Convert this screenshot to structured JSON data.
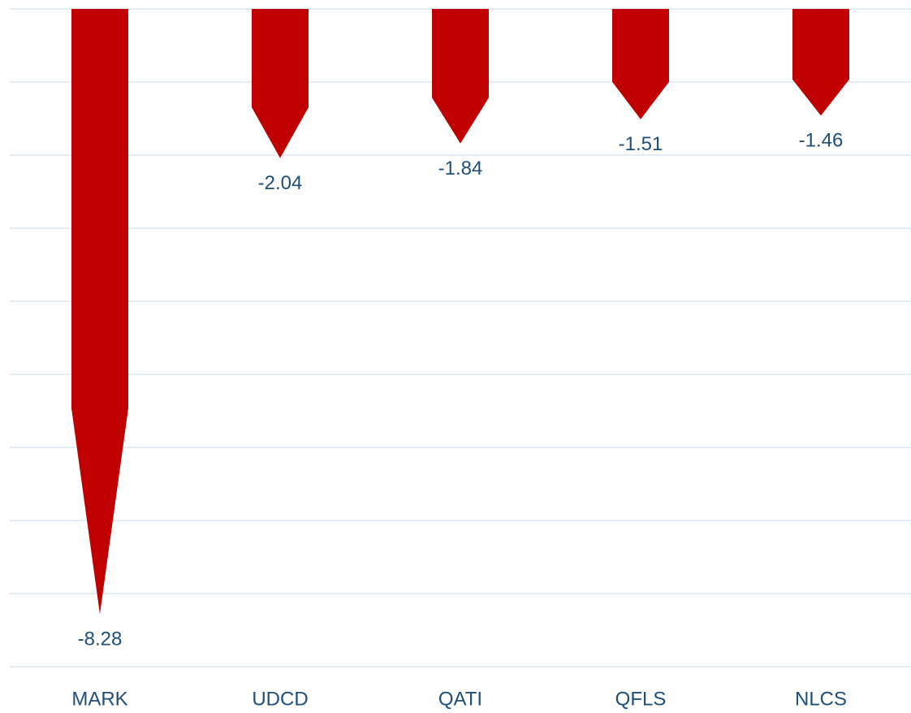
{
  "chart_data": {
    "type": "bar",
    "categories": [
      "MARK",
      "UDCD",
      "QATI",
      "QFLS",
      "NLCS"
    ],
    "values": [
      -8.28,
      -2.04,
      -1.84,
      -1.51,
      -1.46
    ],
    "color": "#c00000",
    "ylim": [
      -9,
      0
    ],
    "yticks": [
      0,
      -1,
      -2,
      -3,
      -4,
      -5,
      -6,
      -7,
      -8,
      -9
    ],
    "grid": true
  }
}
